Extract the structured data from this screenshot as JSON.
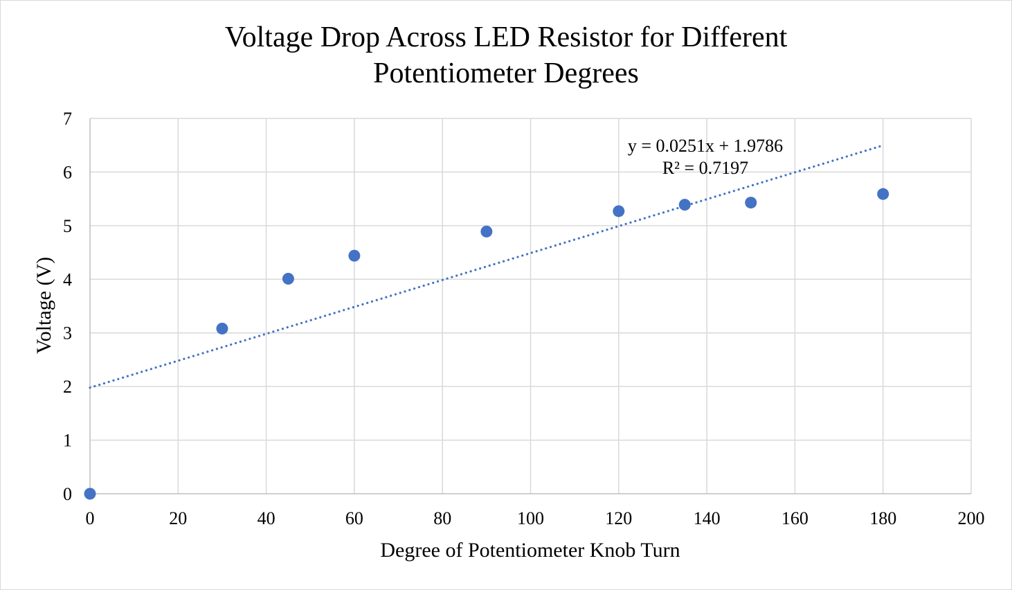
{
  "chart_data": {
    "type": "scatter",
    "title_lines": [
      "Voltage Drop Across LED Resistor for Different",
      "Potentiometer Degrees"
    ],
    "xlabel": "Degree of Potentiometer Knob Turn",
    "ylabel": "Voltage (V)",
    "xlim": [
      0,
      200
    ],
    "ylim": [
      0,
      7
    ],
    "x_ticks": [
      0,
      20,
      40,
      60,
      80,
      100,
      120,
      140,
      160,
      180,
      200
    ],
    "y_ticks": [
      0,
      1,
      2,
      3,
      4,
      5,
      6,
      7
    ],
    "grid": true,
    "legend": "none",
    "series": [
      {
        "name": "Voltage",
        "color": "#4472c4",
        "x": [
          0,
          30,
          45,
          60,
          90,
          120,
          135,
          150,
          180
        ],
        "y": [
          0,
          3.08,
          4.01,
          4.44,
          4.89,
          5.27,
          5.39,
          5.43,
          5.59
        ]
      }
    ],
    "trendline": {
      "type": "linear",
      "slope": 0.0251,
      "intercept": 1.9786,
      "x_range": [
        0,
        180
      ],
      "color": "#4472c4",
      "style": "dotted",
      "equation_label": "y = 0.0251x + 1.9786",
      "r2_label": "R² = 0.7197"
    },
    "colors": {
      "grid": "#d9d9d9",
      "axis": "#bfbfbf",
      "text": "#000000"
    }
  }
}
